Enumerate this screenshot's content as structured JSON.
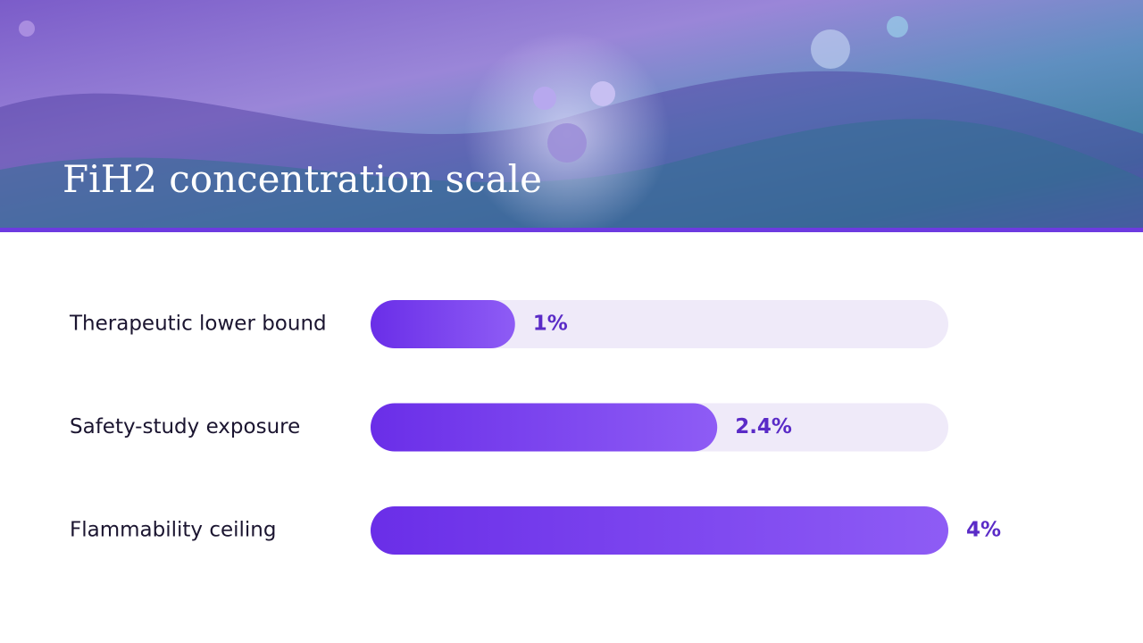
{
  "chart_data": {
    "type": "bar",
    "orientation": "horizontal",
    "title": "FiH2 concentration scale",
    "categories": [
      "Therapeutic lower bound",
      "Safety-study exposure",
      "Flammability ceiling"
    ],
    "values": [
      1,
      2.4,
      4
    ],
    "value_labels": [
      "1%",
      "2.4%",
      "4%"
    ],
    "color": "#6a2ee8",
    "xlim": [
      0,
      4
    ]
  }
}
